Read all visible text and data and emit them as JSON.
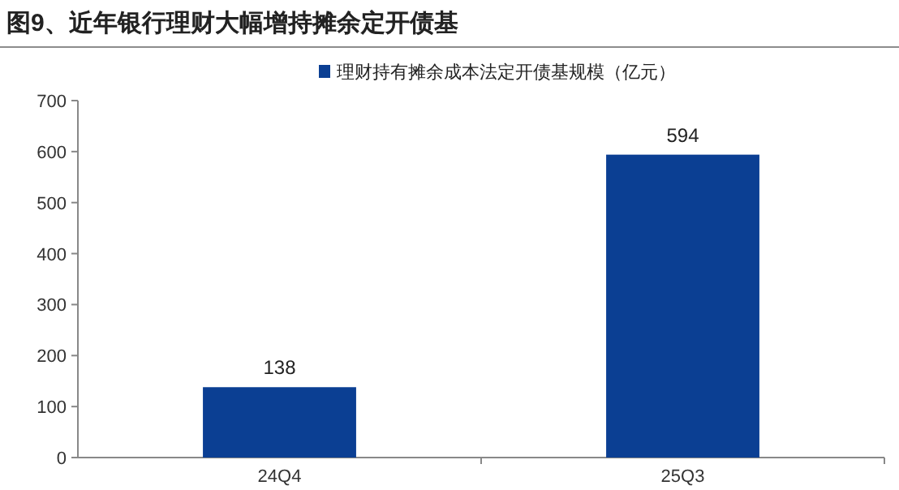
{
  "chart_data": {
    "type": "bar",
    "title": "图9、近年银行理财大幅增持摊余定开债基",
    "categories": [
      "24Q4",
      "25Q3"
    ],
    "series": [
      {
        "name": "理财持有摊余成本法定开债基规模（亿元）",
        "color": "#0b3f93",
        "values": [
          138,
          594
        ]
      }
    ],
    "ylim": [
      0,
      700
    ],
    "yticks": [
      0,
      100,
      200,
      300,
      400,
      500,
      600,
      700
    ],
    "data_labels": true,
    "legend": "top",
    "grid": false
  }
}
